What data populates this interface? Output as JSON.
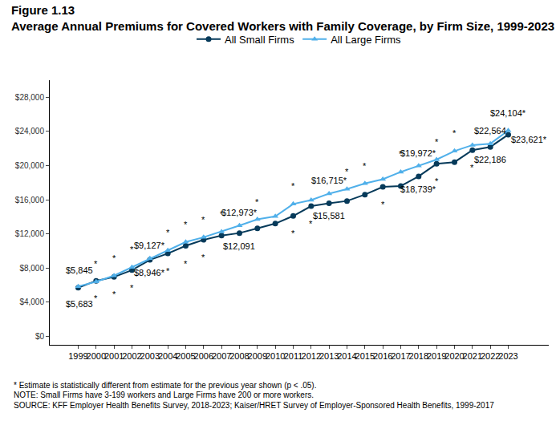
{
  "chart_data": {
    "type": "line",
    "title": "Figure 1.13",
    "subtitle": "Average Annual Premiums for Covered Workers with Family Coverage, by Firm Size, 1999-2023",
    "categories": [
      "1999",
      "2000",
      "2001",
      "2002",
      "2003",
      "2004",
      "2005",
      "2006",
      "2007",
      "2008",
      "2009",
      "2010",
      "2011",
      "2012",
      "2013",
      "2014",
      "2015",
      "2016",
      "2017",
      "2018",
      "2019",
      "2020",
      "2021",
      "2022",
      "2023"
    ],
    "series": [
      {
        "name": "All Small Firms",
        "color": "#063a5a",
        "marker": "circle",
        "values": [
          5683,
          6500,
          6950,
          7750,
          8946,
          9700,
          10600,
          11300,
          11800,
          12091,
          12650,
          13200,
          14100,
          15250,
          15581,
          15850,
          16600,
          17500,
          17600,
          18739,
          20200,
          20400,
          21800,
          22186,
          23621
        ],
        "value_labels": [
          "$5,683",
          null,
          null,
          null,
          "$8,946*",
          null,
          null,
          null,
          null,
          "$12,091",
          null,
          null,
          null,
          null,
          "$15,581",
          null,
          null,
          null,
          null,
          "$18,739*",
          null,
          null,
          null,
          "$22,186",
          "$23,621*"
        ],
        "significance_marks": [
          null,
          "*",
          "*",
          "*",
          null,
          "*",
          "*",
          "*",
          null,
          null,
          null,
          null,
          "*",
          "*",
          null,
          null,
          null,
          "*",
          null,
          null,
          "*",
          null,
          "*",
          null,
          null
        ]
      },
      {
        "name": "All Large Firms",
        "color": "#50b0ea",
        "marker": "triangle-up",
        "values": [
          5845,
          6400,
          7100,
          8100,
          9127,
          10050,
          11050,
          11600,
          12250,
          12973,
          13700,
          14050,
          15500,
          15950,
          16715,
          17250,
          17900,
          18400,
          19250,
          19972,
          20700,
          21700,
          22400,
          22564,
          24104
        ],
        "value_labels": [
          "$5,845",
          null,
          null,
          null,
          "$9,127*",
          null,
          null,
          null,
          null,
          "$12,973*",
          null,
          null,
          null,
          null,
          "$16,715*",
          null,
          null,
          null,
          null,
          "$19,972*",
          null,
          null,
          null,
          "$22,564",
          "$24,104*"
        ],
        "significance_marks": [
          null,
          "*",
          "*",
          "*",
          null,
          "*",
          "*",
          "*",
          "*",
          null,
          "*",
          null,
          "*",
          null,
          null,
          "*",
          "*",
          null,
          "*",
          null,
          "*",
          "*",
          null,
          null,
          null
        ]
      }
    ],
    "ylim": [
      -1000,
      30000
    ],
    "yticks": [
      {
        "value": 0,
        "label": "$0"
      },
      {
        "value": 4000,
        "label": "$4,000"
      },
      {
        "value": 8000,
        "label": "$8,000"
      },
      {
        "value": 12000,
        "label": "$12,000"
      },
      {
        "value": 16000,
        "label": "$16,000"
      },
      {
        "value": 20000,
        "label": "$20,000"
      },
      {
        "value": 24000,
        "label": "$24,000"
      },
      {
        "value": 28000,
        "label": "$28,000"
      }
    ],
    "grid": false,
    "legend": "top",
    "notes": [
      "* Estimate is statistically different from estimate for the previous year shown (p < .05).",
      "NOTE: Small Firms have 3-199 workers and Large Firms have 200 or more workers.",
      "SOURCE: KFF Employer Health Benefits Survey, 2018-2023; Kaiser/HRET Survey of Employer-Sponsored Health Benefits, 1999-2017"
    ]
  }
}
